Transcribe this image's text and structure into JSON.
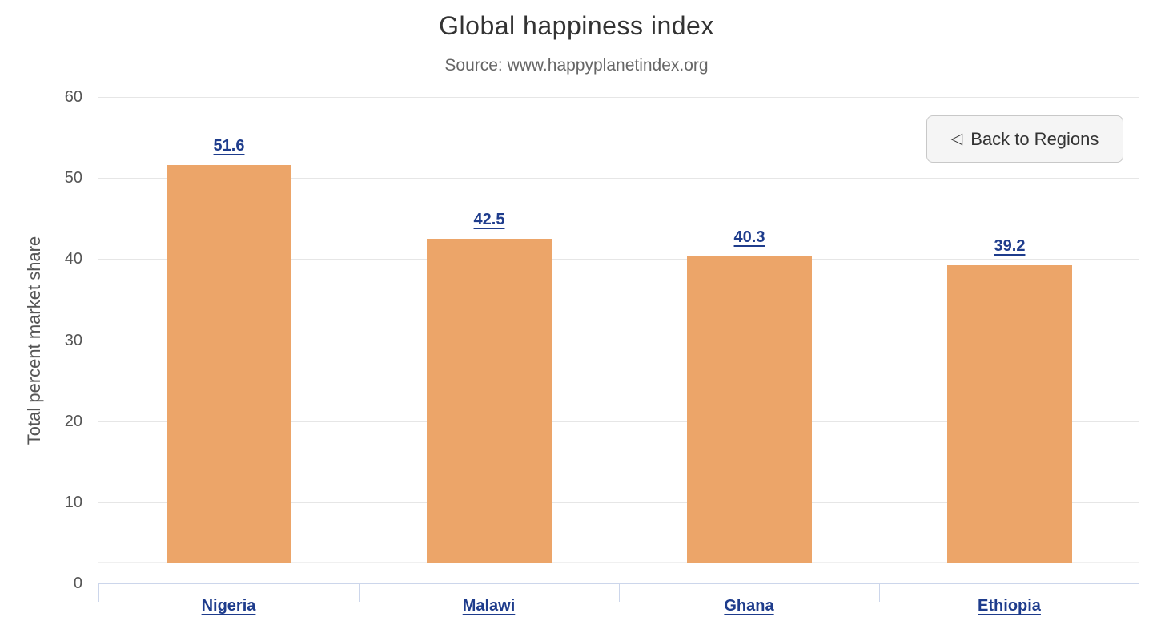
{
  "header": {
    "title": "Global happiness index",
    "subtitle": "Source: www.happyplanetindex.org"
  },
  "back_button": {
    "icon": "◁",
    "label": "Back to Regions"
  },
  "chart_data": {
    "type": "bar",
    "title": "Global happiness index",
    "subtitle": "Source: www.happyplanetindex.org",
    "categories": [
      "Nigeria",
      "Malawi",
      "Ghana",
      "Ethiopia"
    ],
    "values": [
      51.6,
      42.5,
      40.3,
      39.2
    ],
    "xlabel": "",
    "ylabel": "Total percent market share",
    "ylim": [
      0,
      60
    ],
    "yticks": [
      0,
      10,
      20,
      30,
      40,
      50,
      60
    ],
    "grid": true,
    "legend": "none",
    "bar_color": "#eca569",
    "data_label_color": "#1e3c8c",
    "category_label_color": "#1e3c8c",
    "grid_color": "#e6e6e6",
    "axis_line_color": "#ccd6eb"
  }
}
